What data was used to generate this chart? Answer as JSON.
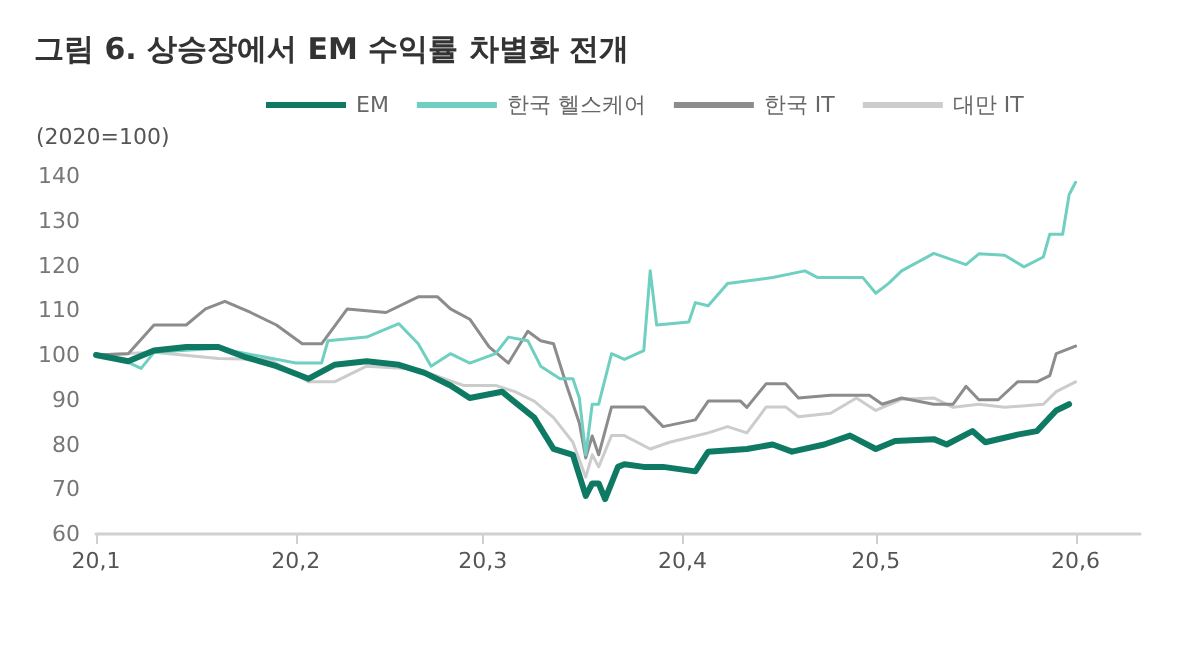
{
  "chart_data": {
    "type": "line",
    "title": "그림 6. 상승장에서 EM 수익률 차별화 전개",
    "ylabel": "(2020=100)",
    "xlim": [
      "2020-01-01",
      "2020-06-11"
    ],
    "xticks": [
      {
        "value": "2020-01-01",
        "label": "20,1"
      },
      {
        "value": "2020-02-01",
        "label": "20,2"
      },
      {
        "value": "2020-03-01",
        "label": "20,3"
      },
      {
        "value": "2020-04-01",
        "label": "20,4"
      },
      {
        "value": "2020-05-01",
        "label": "20,5"
      },
      {
        "value": "2020-06-01",
        "label": "20,6"
      }
    ],
    "ylim": [
      60,
      140
    ],
    "yticks": [
      60,
      70,
      80,
      90,
      100,
      110,
      120,
      130,
      140
    ],
    "grid": false,
    "legend": "top",
    "marker": "none",
    "line_style": "solid",
    "series": [
      {
        "name": "EM",
        "color": "#0f7a64",
        "x": [
          "2020-01-01",
          "2020-01-06",
          "2020-01-10",
          "2020-01-15",
          "2020-01-20",
          "2020-01-24",
          "2020-01-29",
          "2020-02-03",
          "2020-02-07",
          "2020-02-12",
          "2020-02-17",
          "2020-02-21",
          "2020-02-25",
          "2020-02-28",
          "2020-03-04",
          "2020-03-09",
          "2020-03-12",
          "2020-03-15",
          "2020-03-17",
          "2020-03-18",
          "2020-03-19",
          "2020-03-20",
          "2020-03-22",
          "2020-03-23",
          "2020-03-26",
          "2020-03-29",
          "2020-04-03",
          "2020-04-05",
          "2020-04-11",
          "2020-04-15",
          "2020-04-18",
          "2020-04-23",
          "2020-04-27",
          "2020-05-01",
          "2020-05-04",
          "2020-05-10",
          "2020-05-12",
          "2020-05-16",
          "2020-05-18",
          "2020-05-23",
          "2020-05-26",
          "2020-05-29",
          "2020-05-31"
        ],
        "values": [
          100,
          98.6,
          101,
          101.8,
          101.8,
          99.6,
          97.5,
          94.7,
          97.8,
          98.6,
          97.8,
          96,
          93.2,
          90.4,
          91.8,
          86,
          79,
          77.7,
          68.5,
          71.3,
          71.3,
          67.8,
          75,
          75.6,
          75,
          75,
          74,
          78.4,
          79,
          80,
          78.4,
          80,
          82,
          79,
          80.8,
          81.2,
          80,
          83,
          80.5,
          82.2,
          83,
          87.6,
          89
        ]
      },
      {
        "name": "한국 헬스케어",
        "color": "#6fcfc0",
        "x": [
          "2020-01-01",
          "2020-01-05",
          "2020-01-08",
          "2020-01-10",
          "2020-01-20",
          "2020-02-01",
          "2020-02-05",
          "2020-02-06",
          "2020-02-12",
          "2020-02-17",
          "2020-02-20",
          "2020-02-22",
          "2020-02-25",
          "2020-02-28",
          "2020-03-03",
          "2020-03-05",
          "2020-03-08",
          "2020-03-10",
          "2020-03-13",
          "2020-03-15",
          "2020-03-16",
          "2020-03-17",
          "2020-03-18",
          "2020-03-19",
          "2020-03-21",
          "2020-03-23",
          "2020-03-26",
          "2020-03-27",
          "2020-03-28",
          "2020-04-02",
          "2020-04-03",
          "2020-04-05",
          "2020-04-08",
          "2020-04-15",
          "2020-04-20",
          "2020-04-22",
          "2020-04-29",
          "2020-05-01",
          "2020-05-03",
          "2020-05-05",
          "2020-05-10",
          "2020-05-15",
          "2020-05-17",
          "2020-05-21",
          "2020-05-24",
          "2020-05-27",
          "2020-05-28",
          "2020-05-30",
          "2020-05-31",
          "2020-06-01"
        ],
        "values": [
          100,
          99,
          97,
          100.6,
          101.5,
          98.2,
          98.2,
          103.2,
          104,
          107,
          102.5,
          97.5,
          100.3,
          98.2,
          100.3,
          104,
          103.2,
          97.5,
          94.7,
          94.7,
          90.4,
          77.7,
          89,
          89,
          100.3,
          99,
          101,
          118.8,
          106.7,
          107.4,
          111.7,
          111,
          116,
          117.3,
          118.8,
          117.3,
          117.3,
          113.8,
          116,
          118.8,
          122.7,
          120.2,
          122.6,
          122.3,
          119.7,
          121.9,
          127,
          127,
          135.8,
          138.6
        ]
      },
      {
        "name": "한국 IT",
        "color": "#8c8c8c",
        "x": [
          "2020-01-01",
          "2020-01-06",
          "2020-01-10",
          "2020-01-15",
          "2020-01-18",
          "2020-01-21",
          "2020-01-25",
          "2020-01-29",
          "2020-02-02",
          "2020-02-05",
          "2020-02-09",
          "2020-02-15",
          "2020-02-20",
          "2020-02-23",
          "2020-02-25",
          "2020-02-28",
          "2020-03-02",
          "2020-03-05",
          "2020-03-08",
          "2020-03-10",
          "2020-03-12",
          "2020-03-14",
          "2020-03-16",
          "2020-03-17",
          "2020-03-18",
          "2020-03-19",
          "2020-03-21",
          "2020-03-23",
          "2020-03-26",
          "2020-03-29",
          "2020-04-03",
          "2020-04-05",
          "2020-04-10",
          "2020-04-11",
          "2020-04-14",
          "2020-04-17",
          "2020-04-19",
          "2020-04-24",
          "2020-04-30",
          "2020-05-02",
          "2020-05-05",
          "2020-05-10",
          "2020-05-13",
          "2020-05-15",
          "2020-05-17",
          "2020-05-20",
          "2020-05-23",
          "2020-05-26",
          "2020-05-28",
          "2020-05-29",
          "2020-06-01"
        ],
        "values": [
          100,
          100.3,
          106.7,
          106.7,
          110.3,
          112,
          109.5,
          106.7,
          102.5,
          102.5,
          110.3,
          109.5,
          113,
          113,
          110.3,
          108,
          101.8,
          98.2,
          105.3,
          103.2,
          102.5,
          93.3,
          84.8,
          77,
          81.9,
          77.7,
          88.4,
          88.4,
          88.4,
          84,
          85.5,
          89.7,
          89.7,
          88.3,
          93.6,
          93.6,
          90.4,
          91,
          91,
          89,
          90.4,
          89,
          89,
          93,
          90,
          90,
          94,
          94,
          95.4,
          100.3,
          102
        ]
      },
      {
        "name": "대만 IT",
        "color": "#cccccc",
        "x": [
          "2020-01-01",
          "2020-01-10",
          "2020-01-20",
          "2020-01-28",
          "2020-02-03",
          "2020-02-07",
          "2020-02-12",
          "2020-02-20",
          "2020-02-27",
          "2020-03-03",
          "2020-03-06",
          "2020-03-09",
          "2020-03-12",
          "2020-03-15",
          "2020-03-17",
          "2020-03-18",
          "2020-03-19",
          "2020-03-21",
          "2020-03-23",
          "2020-03-27",
          "2020-03-30",
          "2020-04-05",
          "2020-04-08",
          "2020-04-11",
          "2020-04-14",
          "2020-04-17",
          "2020-04-19",
          "2020-04-24",
          "2020-04-28",
          "2020-05-01",
          "2020-05-05",
          "2020-05-10",
          "2020-05-13",
          "2020-05-17",
          "2020-05-21",
          "2020-05-27",
          "2020-05-29",
          "2020-06-01"
        ],
        "values": [
          100,
          100.6,
          99.2,
          99,
          94,
          94,
          97.5,
          96.8,
          93.2,
          93.2,
          91.8,
          89.7,
          86,
          80.5,
          72.7,
          77.7,
          75,
          82,
          82,
          79,
          80.5,
          82.6,
          84,
          82.6,
          88.4,
          88.4,
          86.2,
          87,
          90.4,
          87.6,
          90.1,
          90.4,
          88.3,
          89,
          88.3,
          89,
          91.8,
          94
        ]
      }
    ]
  }
}
